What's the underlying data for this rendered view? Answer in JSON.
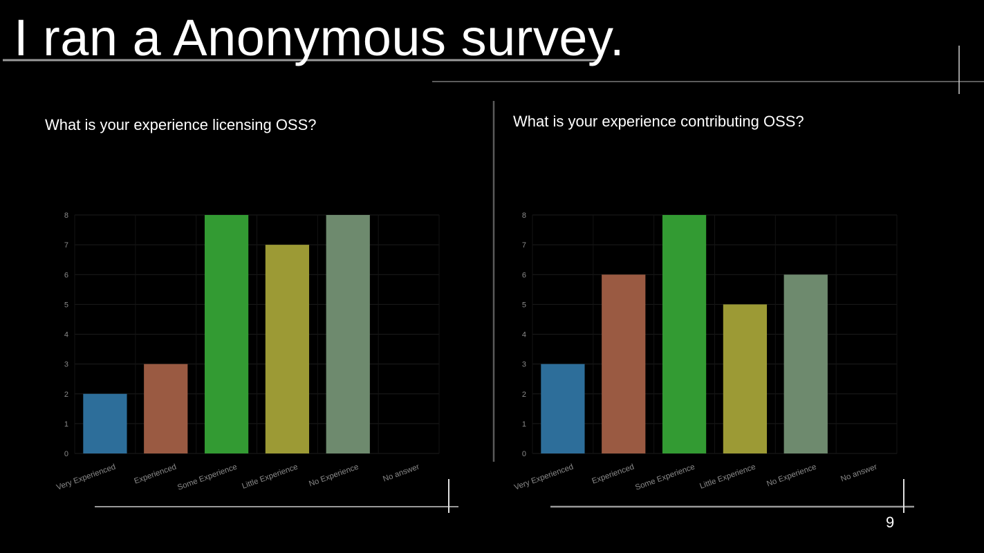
{
  "slide": {
    "title": "I ran a Anonymous survey.",
    "page_number": "9"
  },
  "colors": {
    "background": "#000000",
    "very_experienced": "#2d6e9a",
    "experienced": "#9a5a42",
    "some_experience": "#339b33",
    "little_experience": "#9c9a35",
    "no_experience": "#6e8a6e"
  },
  "chart_data": [
    {
      "type": "bar",
      "title": "What is your experience licensing OSS?",
      "categories": [
        "Very Experienced",
        "Experienced",
        "Some Experience",
        "Little Experience",
        "No Experience",
        "No answer"
      ],
      "values": [
        2,
        3,
        8,
        7,
        8,
        0
      ],
      "ylim": [
        0,
        8
      ],
      "yticks": [
        0,
        1,
        2,
        3,
        4,
        5,
        6,
        7,
        8
      ],
      "grid": true,
      "xlabel": "",
      "ylabel": ""
    },
    {
      "type": "bar",
      "title": "What is your experience contributing OSS?",
      "categories": [
        "Very Experienced",
        "Experienced",
        "Some Experience",
        "Little Experience",
        "No Experience",
        "No answer"
      ],
      "values": [
        3,
        6,
        8,
        5,
        6,
        0
      ],
      "ylim": [
        0,
        8
      ],
      "yticks": [
        0,
        1,
        2,
        3,
        4,
        5,
        6,
        7,
        8
      ],
      "grid": true,
      "xlabel": "",
      "ylabel": ""
    }
  ]
}
